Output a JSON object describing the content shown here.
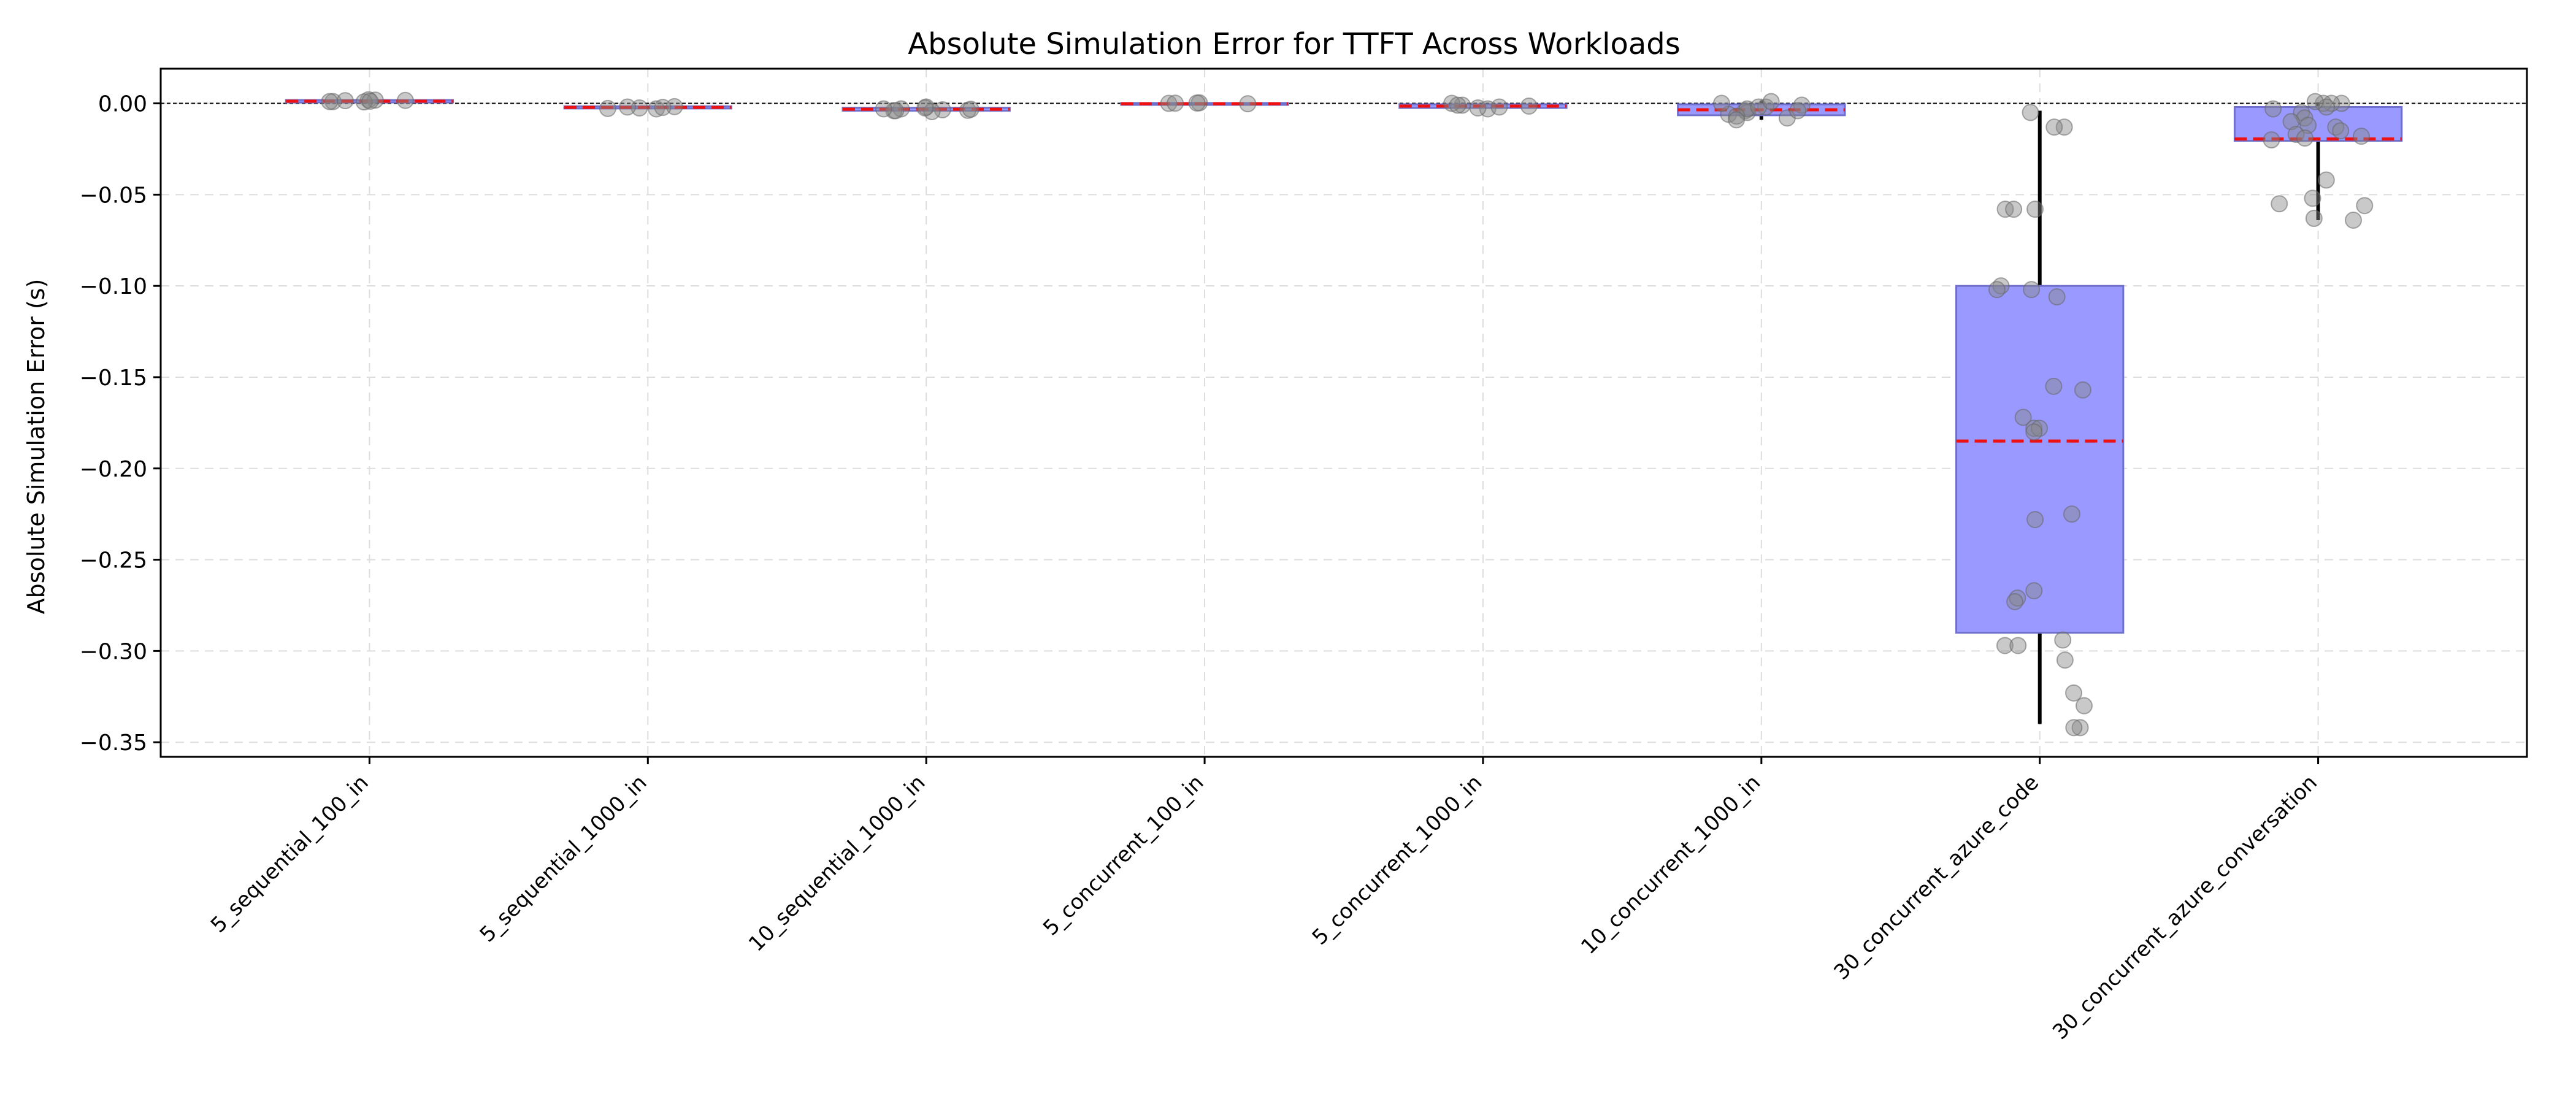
{
  "chart_data": {
    "type": "box",
    "title": "Absolute Simulation Error for TTFT Across Workloads",
    "xlabel": "",
    "ylabel": "Absolute Simulation Error (s)",
    "ylim": [
      -0.358,
      0.019
    ],
    "yticks": [
      0.0,
      -0.05,
      -0.1,
      -0.15,
      -0.2,
      -0.25,
      -0.3,
      -0.35
    ],
    "ytick_labels": [
      "0.00",
      "−0.05",
      "−0.10",
      "−0.15",
      "−0.20",
      "−0.25",
      "−0.30",
      "−0.35"
    ],
    "grid": true,
    "zero_reference_line": true,
    "colors": {
      "box_fill": "#9999ff",
      "box_edge": "#6f6fcc",
      "median": "#ee1111",
      "whisker": "#000000",
      "points": "#888888",
      "grid": "#dddddd"
    },
    "categories": [
      "5_sequential_100_in",
      "5_sequential_1000_in",
      "10_sequential_1000_in",
      "5_concurrent_100_in",
      "5_concurrent_1000_in",
      "10_concurrent_1000_in",
      "30_concurrent_azure_code",
      "30_concurrent_azure_conversation"
    ],
    "boxes": [
      {
        "q1": 0.0005,
        "median": 0.0012,
        "q3": 0.0018,
        "whisker_low": 0.0005,
        "whisker_high": 0.0018,
        "points": [
          0.002,
          0.0018,
          0.001,
          0.0015,
          0.0008,
          0.0012,
          0.001,
          0.0016
        ]
      },
      {
        "q1": -0.0028,
        "median": -0.0022,
        "q3": -0.0016,
        "whisker_low": -0.0028,
        "whisker_high": -0.0016,
        "points": [
          -0.003,
          -0.0025,
          -0.002,
          -0.0018,
          -0.0022,
          -0.0028
        ]
      },
      {
        "q1": -0.004,
        "median": -0.0032,
        "q3": -0.0024,
        "whisker_low": -0.004,
        "whisker_high": -0.0024,
        "points": [
          -0.002,
          -0.003,
          -0.0035,
          -0.004,
          -0.0045,
          -0.0025,
          -0.004,
          -0.003,
          -0.0038,
          -0.0032
        ]
      },
      {
        "q1": -0.0006,
        "median": -0.0002,
        "q3": 0.0002,
        "whisker_low": -0.0006,
        "whisker_high": 0.0002,
        "points": [
          0.0,
          0.0003,
          -0.0002,
          0.0001,
          0.0002
        ]
      },
      {
        "q1": -0.0025,
        "median": -0.0015,
        "q3": -0.0005,
        "whisker_low": -0.0025,
        "whisker_high": -0.0005,
        "points": [
          -0.003,
          -0.002,
          -0.001,
          0.0,
          -0.0015,
          -0.0025,
          -0.001
        ]
      },
      {
        "q1": -0.0065,
        "median": -0.0035,
        "q3": -0.0005,
        "whisker_low": -0.009,
        "whisker_high": 0.0015,
        "points": [
          -0.002,
          -0.004,
          -0.006,
          -0.008,
          -0.005,
          -0.003,
          0.0,
          -0.001,
          -0.007,
          -0.004,
          -0.002,
          -0.009,
          0.001
        ]
      },
      {
        "q1": -0.29,
        "median": -0.185,
        "q3": -0.1,
        "whisker_low": -0.34,
        "whisker_high": -0.004,
        "points": [
          -0.005,
          -0.013,
          -0.013,
          -0.058,
          -0.058,
          -0.058,
          -0.1,
          -0.102,
          -0.102,
          -0.106,
          -0.155,
          -0.157,
          -0.172,
          -0.178,
          -0.178,
          -0.18,
          -0.225,
          -0.228,
          -0.267,
          -0.271,
          -0.273,
          -0.294,
          -0.297,
          -0.297,
          -0.305,
          -0.323,
          -0.33,
          -0.342,
          -0.342
        ]
      },
      {
        "q1": -0.0205,
        "median": -0.0195,
        "q3": -0.002,
        "whisker_low": -0.064,
        "whisker_high": 0.0005,
        "points": [
          0.0,
          0.0,
          0.0,
          -0.003,
          -0.005,
          -0.008,
          -0.01,
          -0.012,
          -0.013,
          -0.015,
          -0.017,
          -0.018,
          -0.02,
          -0.019,
          -0.042,
          -0.052,
          -0.055,
          -0.056,
          -0.063,
          -0.064,
          -0.002,
          0.001
        ]
      }
    ]
  }
}
